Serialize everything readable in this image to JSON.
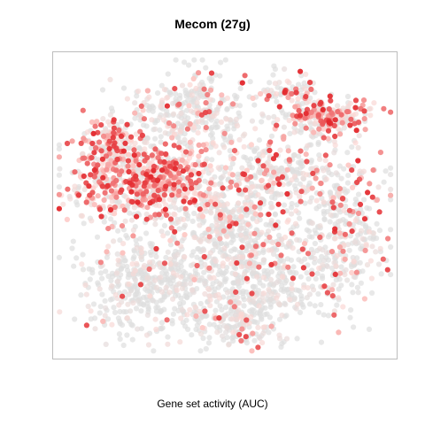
{
  "chart_data": {
    "type": "scatter",
    "title": "Mecom (27g)",
    "xlabel": "Gene set activity (AUC)",
    "ylabel": "",
    "xlim": [
      0,
      100
    ],
    "ylim": [
      0,
      100
    ],
    "axes_visible": false,
    "grid": false,
    "legend": "none",
    "color_scale": {
      "low": "#dedede",
      "mid": "#ffd6d2",
      "high": "#e3262b"
    },
    "clusters": [
      {
        "x": 26,
        "y": 58,
        "sx": 11,
        "sy": 7,
        "n": 650,
        "activity": 0.6
      },
      {
        "x": 16,
        "y": 70,
        "sx": 4,
        "sy": 5,
        "n": 160,
        "activity": 0.5
      },
      {
        "x": 80,
        "y": 80,
        "sx": 6,
        "sy": 3,
        "n": 220,
        "activity": 0.48
      },
      {
        "x": 70,
        "y": 88,
        "sx": 4,
        "sy": 3,
        "n": 70,
        "activity": 0.25
      },
      {
        "x": 40,
        "y": 82,
        "sx": 10,
        "sy": 7,
        "n": 330,
        "activity": 0.15
      },
      {
        "x": 64,
        "y": 60,
        "sx": 13,
        "sy": 8,
        "n": 400,
        "activity": 0.22
      },
      {
        "x": 28,
        "y": 24,
        "sx": 10,
        "sy": 9,
        "n": 450,
        "activity": 0.04
      },
      {
        "x": 60,
        "y": 26,
        "sx": 12,
        "sy": 10,
        "n": 550,
        "activity": 0.08
      },
      {
        "x": 86,
        "y": 40,
        "sx": 6,
        "sy": 10,
        "n": 260,
        "activity": 0.18
      },
      {
        "x": 52,
        "y": 10,
        "sx": 6,
        "sy": 4,
        "n": 110,
        "activity": 0.12
      },
      {
        "x": 50,
        "y": 45,
        "sx": 8,
        "sy": 6,
        "n": 200,
        "activity": 0.25
      }
    ]
  }
}
